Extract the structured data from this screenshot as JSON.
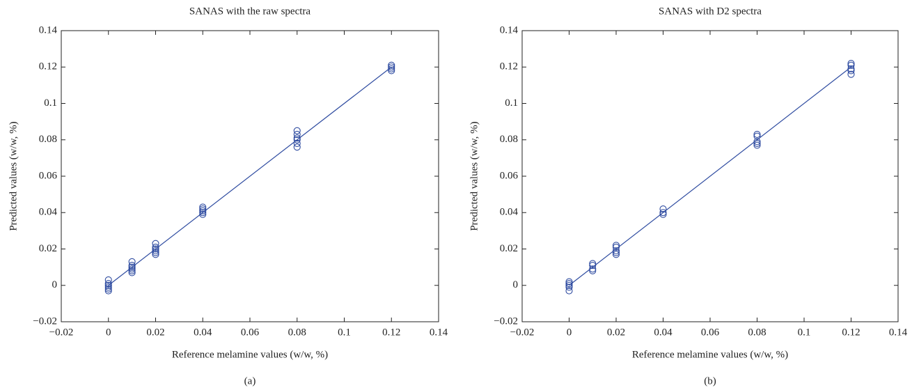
{
  "chart_data": [
    {
      "type": "scatter",
      "title": "SANAS with the raw spectra",
      "xlabel": "Reference melamine values (w/w, %)",
      "ylabel": "Predicted values (w/w, %)",
      "caption": "(a)",
      "color": "#2e4ba0",
      "x": [
        0,
        0,
        0,
        0,
        0,
        0,
        0.01,
        0.01,
        0.01,
        0.01,
        0.01,
        0.01,
        0.02,
        0.02,
        0.02,
        0.02,
        0.02,
        0.02,
        0.04,
        0.04,
        0.04,
        0.04,
        0.04,
        0.08,
        0.08,
        0.08,
        0.08,
        0.08,
        0.08,
        0.12,
        0.12,
        0.12,
        0.12
      ],
      "values": [
        0.003,
        0.001,
        0,
        -0.001,
        -0.002,
        -0.003,
        0.013,
        0.011,
        0.01,
        0.009,
        0.008,
        0.007,
        0.023,
        0.021,
        0.02,
        0.019,
        0.018,
        0.017,
        0.043,
        0.042,
        0.041,
        0.04,
        0.039,
        0.085,
        0.083,
        0.081,
        0.08,
        0.078,
        0.076,
        0.121,
        0.12,
        0.119,
        0.118
      ],
      "line": {
        "x": [
          0,
          0.12
        ],
        "values": [
          0,
          0.12
        ]
      },
      "xlim": [
        -0.02,
        0.14
      ],
      "ylim": [
        -0.02,
        0.14
      ],
      "xticks": [
        {
          "value": -0.02,
          "label": "−0.02"
        },
        0,
        0.02,
        0.04,
        0.06,
        0.08,
        0.1,
        0.12,
        0.14
      ],
      "yticks": [
        {
          "value": -0.02,
          "label": "−0.02"
        },
        0,
        0.02,
        0.04,
        0.06,
        0.08,
        0.1,
        0.12,
        0.14
      ]
    },
    {
      "type": "scatter",
      "title": "SANAS with D2 spectra",
      "xlabel": "Reference melamine values (w/w, %)",
      "ylabel": "Predicted values (w/w, %)",
      "caption": "(b)",
      "color": "#2e4ba0",
      "x": [
        0,
        0,
        0,
        0,
        0,
        0.01,
        0.01,
        0.01,
        0.01,
        0.02,
        0.02,
        0.02,
        0.02,
        0.02,
        0.04,
        0.04,
        0.04,
        0.08,
        0.08,
        0.08,
        0.08,
        0.08,
        0.12,
        0.12,
        0.12,
        0.12,
        0.12
      ],
      "values": [
        0.002,
        0.001,
        0,
        -0.001,
        -0.003,
        0.012,
        0.011,
        0.009,
        0.008,
        0.022,
        0.021,
        0.019,
        0.018,
        0.017,
        0.042,
        0.04,
        0.039,
        0.083,
        0.082,
        0.079,
        0.078,
        0.077,
        0.122,
        0.121,
        0.119,
        0.118,
        0.116
      ],
      "line": {
        "x": [
          0,
          0.12
        ],
        "values": [
          0,
          0.12
        ]
      },
      "xlim": [
        -0.02,
        0.14
      ],
      "ylim": [
        -0.02,
        0.14
      ],
      "xticks": [
        {
          "value": -0.02,
          "label": "−0.02"
        },
        0,
        0.02,
        0.04,
        0.06,
        0.08,
        0.1,
        0.12,
        0.14
      ],
      "yticks": [
        {
          "value": -0.02,
          "label": "−0.02"
        },
        0,
        0.02,
        0.04,
        0.06,
        0.08,
        0.1,
        0.12,
        0.14
      ]
    }
  ]
}
